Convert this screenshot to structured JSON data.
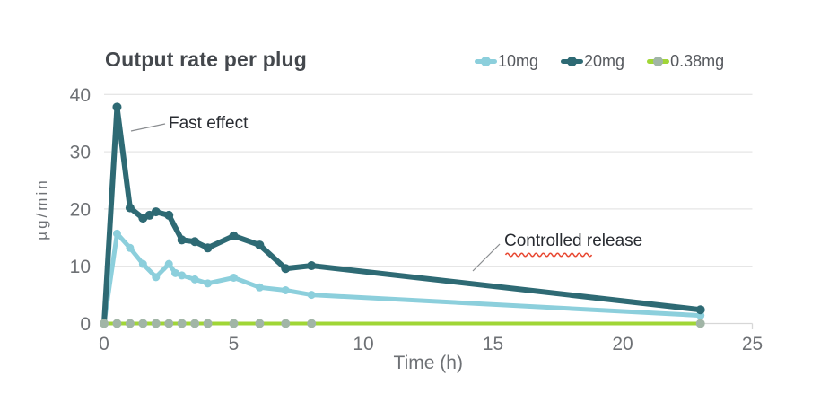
{
  "title": "Output rate per plug",
  "legend": [
    {
      "label": "10mg",
      "line_color": "#8CCFDC",
      "dot_color": "#8CCFDC"
    },
    {
      "label": "20mg",
      "line_color": "#2E6A74",
      "dot_color": "#2E6A74"
    },
    {
      "label": "0.38mg",
      "line_color": "#A0D636",
      "dot_color": "#A1B5A6"
    }
  ],
  "chart_data": {
    "type": "line",
    "title": "Output rate per plug",
    "xlabel": "Time (h)",
    "ylabel": "µg/min",
    "xlim": [
      0,
      25
    ],
    "ylim": [
      0,
      40
    ],
    "xticks": [
      0,
      5,
      10,
      15,
      20,
      25
    ],
    "yticks": [
      0,
      10,
      20,
      30,
      40
    ],
    "grid": "horizontal-only",
    "legend_position": "top-right",
    "series": [
      {
        "name": "10mg",
        "color": "#8CCFDC",
        "dot_color": "#8CCFDC",
        "line_width": 5,
        "dot_radius": 4.5,
        "x": [
          0,
          0.5,
          1,
          1.5,
          2,
          2.5,
          2.75,
          3,
          3.5,
          4,
          5,
          6,
          7,
          8,
          23
        ],
        "y": [
          0,
          15.7,
          13.2,
          10.4,
          8.1,
          10.4,
          8.8,
          8.4,
          7.7,
          7.0,
          8.0,
          6.3,
          5.8,
          5.0,
          1.4
        ]
      },
      {
        "name": "20mg",
        "color": "#2E6A74",
        "dot_color": "#2E6A74",
        "line_width": 6,
        "dot_radius": 5,
        "x": [
          0,
          0.5,
          1,
          1.5,
          1.75,
          2,
          2.5,
          3,
          3.5,
          4,
          5,
          6,
          7,
          8,
          23
        ],
        "y": [
          0,
          37.8,
          20.2,
          18.4,
          18.9,
          19.5,
          18.9,
          14.6,
          14.3,
          13.2,
          15.3,
          13.7,
          9.6,
          10.1,
          2.4
        ]
      },
      {
        "name": "0.38mg",
        "color": "#A0D636",
        "dot_color": "#A1B5A6",
        "line_width": 4,
        "dot_radius": 5,
        "x": [
          0,
          0.5,
          1,
          1.5,
          2,
          2.5,
          3,
          3.5,
          4,
          5,
          6,
          7,
          8,
          23
        ],
        "y": [
          0,
          0,
          0,
          0,
          0,
          0,
          0,
          0,
          0,
          0,
          0,
          0,
          0,
          0
        ]
      }
    ],
    "annotations": [
      {
        "text": "Fast effect",
        "target": "20mg peak at t=0.5h",
        "underline": "none"
      },
      {
        "text": "Controlled release",
        "target": "20mg tail from 8h to 23h",
        "underline": "red-squiggle-under-first-word"
      }
    ],
    "colors": {
      "grid": "#E6E6E6",
      "axis_line": "#D7D7D7",
      "tick_text": "#6E7175",
      "title_text": "#44484D",
      "annotation_text": "#282B31",
      "leader_line": "#8A8D90",
      "squiggle": "#E84A34"
    }
  }
}
